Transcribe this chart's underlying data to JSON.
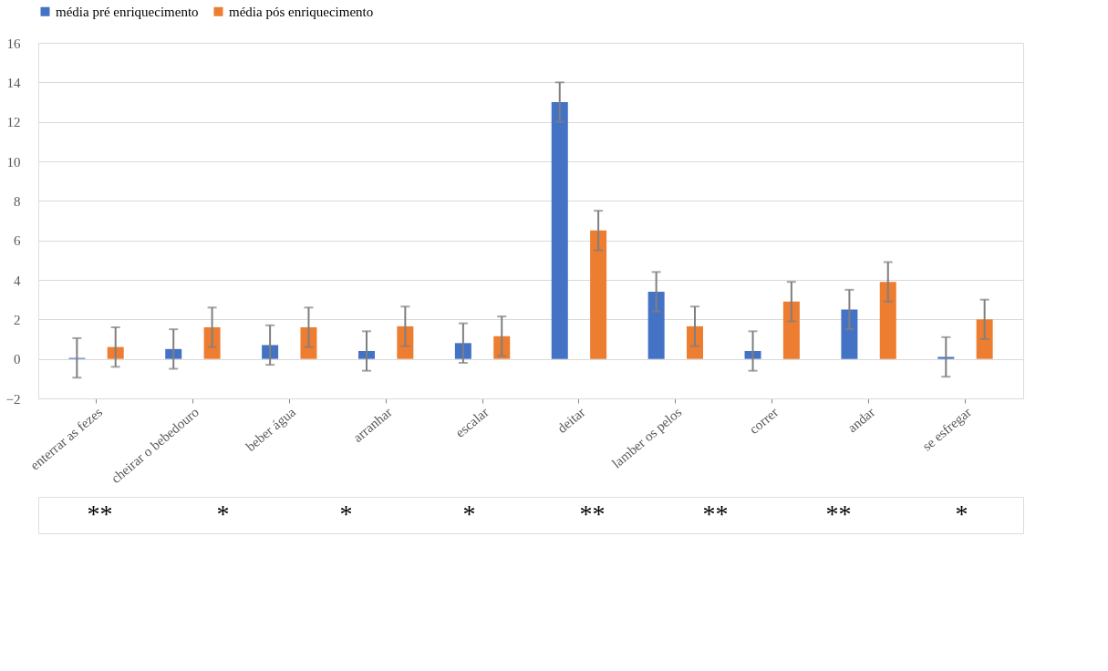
{
  "chart_data": {
    "type": "bar",
    "categories": [
      "enterrar as fezes",
      "cheirar o bebedouro",
      "beber água",
      "arranhar",
      "escalar",
      "deitar",
      "lamber os pelos",
      "correr",
      "andar",
      "se esfregar"
    ],
    "series": [
      {
        "name": "média  pré enriquecimento",
        "color": "#4472c4",
        "values": [
          0.05,
          0.5,
          0.7,
          0.4,
          0.8,
          13,
          3.4,
          0.4,
          2.5,
          0.1
        ],
        "errors": [
          1,
          1,
          1,
          1,
          1,
          1,
          1,
          1,
          1,
          1
        ]
      },
      {
        "name": "média  pós enriquecimento",
        "color": "#ed7d31",
        "values": [
          0.6,
          1.6,
          1.6,
          1.65,
          1.15,
          6.5,
          1.65,
          2.9,
          3.9,
          2.0
        ],
        "errors": [
          1,
          1,
          1,
          1,
          1,
          1,
          1,
          1,
          1,
          1
        ]
      }
    ],
    "ylim": [
      -2,
      16
    ],
    "yticks": [
      -2,
      0,
      2,
      4,
      6,
      8,
      10,
      12,
      14,
      16
    ],
    "grid": "y",
    "legend": "top",
    "annotations": [
      "**",
      "*",
      "*",
      "*",
      "**",
      "**",
      "**",
      "*"
    ]
  }
}
